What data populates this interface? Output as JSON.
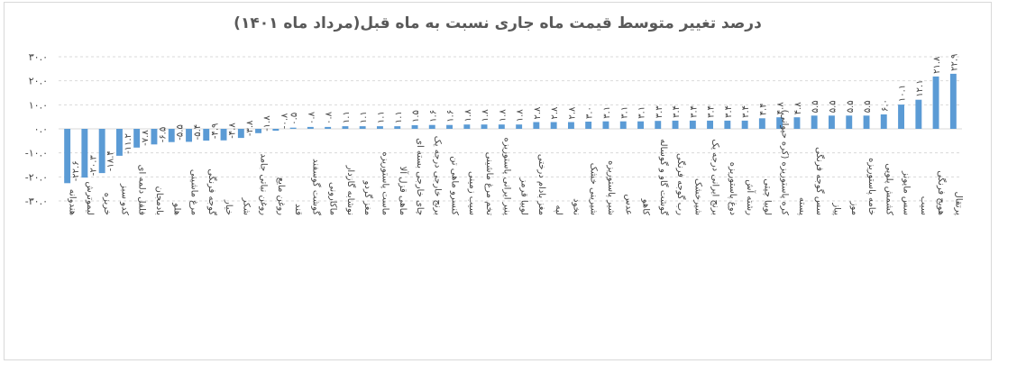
{
  "chart_data": {
    "type": "bar",
    "title": "درصد تغییر متوسط قیمت ماه جاری نسبت به ماه قبل(مرداد ماه ۱۴۰۱)",
    "xlabel": "",
    "ylabel": "",
    "ylim": [
      -30,
      30
    ],
    "yticks": [
      30,
      20,
      10,
      0,
      -10,
      -20,
      -30
    ],
    "ytick_labels": [
      "۳۰.۰",
      "۲۰.۰",
      "۱۰.۰",
      "۰.۰",
      "-۱۰.۰",
      "-۲۰.۰",
      "-۳۰.۰"
    ],
    "grid": true,
    "bar_color": "#5b9bd5",
    "categories": [
      "هندوانه",
      "لیموترش",
      "خربزه",
      "کدو سبز",
      "فلفل دلمه ای",
      "بادمجان",
      "هلو",
      "مرغ ماشینی",
      "گوجه فرنگی",
      "خیار",
      "شکر",
      "روغن نباتی جامد",
      "روغن مایع",
      "قند",
      "گوشت گوسفند",
      "ماکارونی",
      "نوشابه گازدار",
      "مغز گردو",
      "ماست پاستوریزه",
      "ماهی قزل آلا",
      "چای خارجی بسته ای",
      "برنج خارجی درجه یک",
      "کنسرو ماهی تن",
      "سیب زمینی",
      "تخم مرغ ماشینی",
      "پنیر ایرانی پاستوریزه",
      "لوبیا قرمز",
      "مغز بادام درختی",
      "لپه",
      "نخود",
      "شیرینی خشک",
      "شیر پاستوریزه",
      "عدس",
      "کاهو",
      "گوشت گاو و گوساله",
      "رب گوجه فرنگی",
      "شیرخشک",
      "برنج ایرانی درجه یک",
      "دوغ پاستوریزه",
      "رشته آش",
      "لوبیا چیتی",
      "کره پاستوریزه (کره حیوانی)",
      "پسته",
      "سس گوجه فرنگی",
      "پیاز",
      "موز",
      "خامه پاستوریزه",
      "کشمش پلویی",
      "سس مایونز",
      "سیب",
      "هویج فرنگی",
      "پرتقال"
    ],
    "values": [
      -22.6,
      -20.3,
      -18.4,
      -11.2,
      -7.8,
      -6.5,
      -5.5,
      -5.4,
      -4.9,
      -4.8,
      -3.8,
      -1.8,
      -0.8,
      0.5,
      0.8,
      0.8,
      1.1,
      1.1,
      1.1,
      1.1,
      1.5,
      1.6,
      1.6,
      1.8,
      1.8,
      1.8,
      1.8,
      2.8,
      2.8,
      2.8,
      3.0,
      3.1,
      3.1,
      3.1,
      3.3,
      3.4,
      3.4,
      3.4,
      3.4,
      3.4,
      4.4,
      4.8,
      4.8,
      5.5,
      5.5,
      5.5,
      5.5,
      6.0,
      10.1,
      12.1,
      21.8,
      22.9
    ],
    "value_labels": [
      "-۲۲.۶",
      "-۲۰.۳",
      "-۱۸.۴",
      "-۱۱.۲",
      "-۷.۸",
      "-۶.۵",
      "-۵.۵",
      "-۵.۴",
      "-۴.۹",
      "-۴.۸",
      "-۳.۸",
      "-۱.۸",
      "-۰.۸",
      "۰.۵",
      "۰.۸",
      "۰.۸",
      "۱.۱",
      "۱.۱",
      "۱.۱",
      "۱.۱",
      "۱.۵",
      "۱.۶",
      "۱.۶",
      "۱.۸",
      "۱.۸",
      "۱.۸",
      "۱.۸",
      "۲.۸",
      "۲.۸",
      "۲.۸",
      "۳.۰",
      "۳.۱",
      "۳.۱",
      "۳.۱",
      "۳.۳",
      "۳.۴",
      "۳.۴",
      "۳.۴",
      "۳.۴",
      "۳.۴",
      "۴.۴",
      "۴.۸",
      "۴.۸",
      "۵.۵",
      "۵.۵",
      "۵.۵",
      "۵.۵",
      "۶.۰",
      "۱۰.۱",
      "۱۲.۱",
      "۲۱.۸",
      "۲۲.۹"
    ]
  }
}
